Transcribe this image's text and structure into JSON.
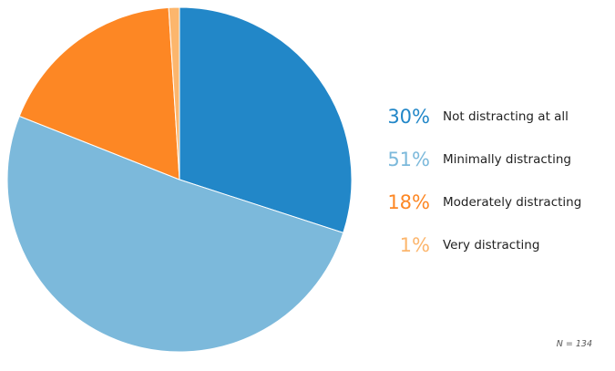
{
  "chart_data": {
    "type": "pie",
    "slices": [
      {
        "label": "Not distracting at all",
        "value": 30,
        "display": "30%",
        "color": "#2287c8"
      },
      {
        "label": "Minimally distracting",
        "value": 51,
        "display": "51%",
        "color": "#7cb9db"
      },
      {
        "label": "Moderately distracting",
        "value": 18,
        "display": "18%",
        "color": "#fd8724"
      },
      {
        "label": "Very distracting",
        "value": 1,
        "display": "1%",
        "color": "#fcb66d"
      }
    ],
    "start": "12 o'clock",
    "direction": "clockwise",
    "legend_position": "right",
    "note": "N = 134"
  }
}
